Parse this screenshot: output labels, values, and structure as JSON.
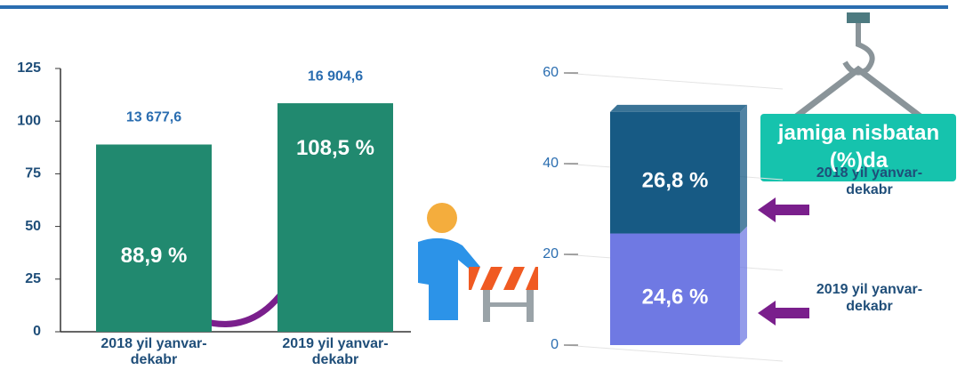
{
  "chart_data": [
    {
      "type": "bar",
      "categories": [
        "2018 yil yanvar-dekabr",
        "2019 yil yanvar-dekabr"
      ],
      "values": [
        88.9,
        108.5
      ],
      "value_labels": [
        "88,9 %",
        "108,5 %"
      ],
      "annotations": [
        "13 677,6",
        "16 904,6"
      ],
      "color": "#21896f",
      "ylim": [
        0,
        125
      ],
      "yticks": [
        0,
        25,
        50,
        75,
        100,
        125
      ]
    },
    {
      "type": "stacked_bar",
      "annotation": "jamiga nisbatan (%)da",
      "series": [
        {
          "name": "2019 yil yanvar-dekabr",
          "color": "#6f79e3",
          "values": [
            24.6
          ],
          "value_labels": [
            "24,6 %"
          ]
        },
        {
          "name": "2018 yil yanvar-dekabr",
          "color": "#175a84",
          "values": [
            26.8
          ],
          "value_labels": [
            "26,8 %"
          ]
        }
      ],
      "ylim": [
        0,
        60
      ],
      "yticks": [
        0,
        20,
        40,
        60
      ]
    }
  ]
}
